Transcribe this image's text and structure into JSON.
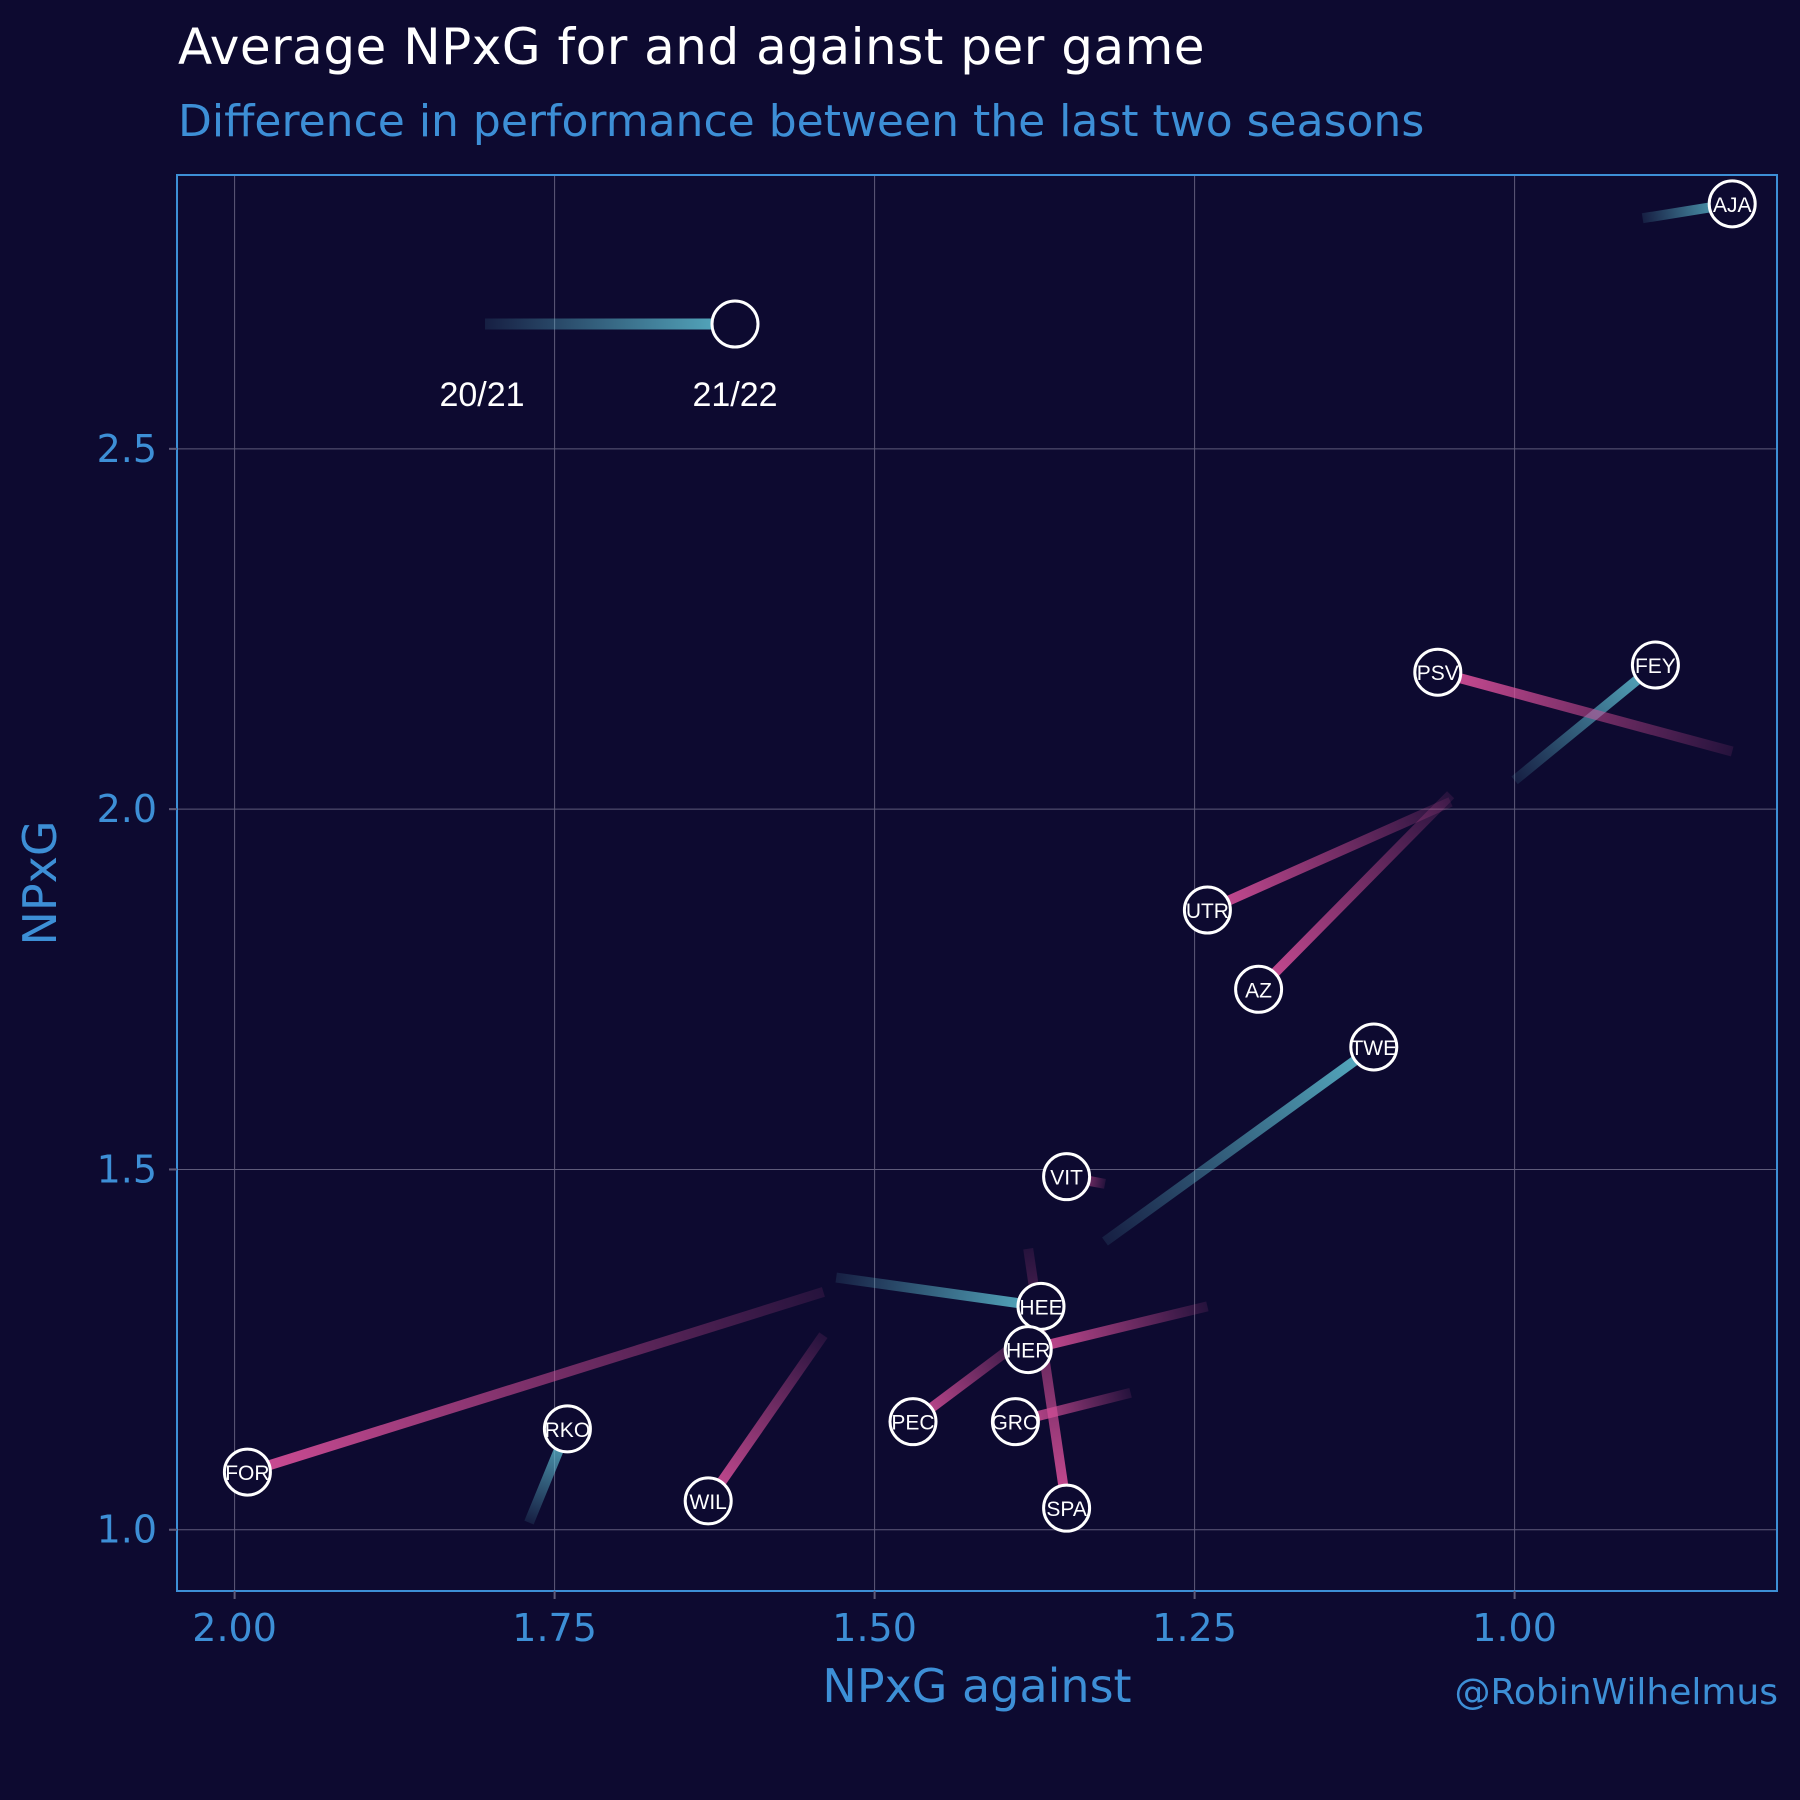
{
  "title": "Average NPxG for and against per game",
  "subtitle": "Difference in performance between the last two seasons",
  "credit": "@RobinWilhelmus",
  "colors": {
    "background": "#0d0a30",
    "accent": "#3d8fd6",
    "improved": "#5bb8cc",
    "declined": "#d9509a",
    "grid": "#5e5b7a"
  },
  "chart_data": {
    "type": "scatter",
    "xlabel": "NPxG against",
    "ylabel": "NPxG",
    "x_reversed": true,
    "xlim": [
      2.045,
      0.795
    ],
    "ylim": [
      0.915,
      2.88
    ],
    "x_ticks": [
      "2.00",
      "1.75",
      "1.50",
      "1.25",
      "1.00"
    ],
    "y_ticks": [
      "1.0",
      "1.5",
      "2.0",
      "2.5"
    ],
    "grid": true,
    "legend": {
      "from_label": "20/21",
      "to_label": "21/22",
      "position": "top-left"
    },
    "teams": [
      {
        "label": "AJA",
        "xga_2021": 0.9,
        "xg_2021": 2.82,
        "xga_2122": 0.83,
        "xg_2122": 2.84
      },
      {
        "label": "FEY",
        "xga_2021": 1.0,
        "xg_2021": 2.04,
        "xga_2122": 0.89,
        "xg_2122": 2.2
      },
      {
        "label": "PSV",
        "xga_2021": 0.83,
        "xg_2021": 2.08,
        "xga_2122": 1.06,
        "xg_2122": 2.19
      },
      {
        "label": "UTR",
        "xga_2021": 1.05,
        "xg_2021": 2.01,
        "xga_2122": 1.24,
        "xg_2122": 1.86
      },
      {
        "label": "AZ",
        "xga_2021": 1.05,
        "xg_2021": 2.02,
        "xga_2122": 1.2,
        "xg_2122": 1.75
      },
      {
        "label": "TWE",
        "xga_2021": 1.32,
        "xg_2021": 1.4,
        "xga_2122": 1.11,
        "xg_2122": 1.67
      },
      {
        "label": "VIT",
        "xga_2021": 1.32,
        "xg_2021": 1.48,
        "xga_2122": 1.35,
        "xg_2122": 1.49
      },
      {
        "label": "HEE",
        "xga_2021": 1.53,
        "xg_2021": 1.35,
        "xga_2122": 1.37,
        "xg_2122": 1.31
      },
      {
        "label": "HER",
        "xga_2021": 1.24,
        "xg_2021": 1.31,
        "xga_2122": 1.38,
        "xg_2122": 1.25
      },
      {
        "label": "GRO",
        "xga_2021": 1.3,
        "xg_2021": 1.19,
        "xga_2122": 1.39,
        "xg_2122": 1.15
      },
      {
        "label": "SPA",
        "xga_2021": 1.38,
        "xg_2021": 1.39,
        "xga_2122": 1.35,
        "xg_2122": 1.03
      },
      {
        "label": "PEC",
        "xga_2021": 1.38,
        "xg_2021": 1.27,
        "xga_2122": 1.47,
        "xg_2122": 1.15
      },
      {
        "label": "WIL",
        "xga_2021": 1.54,
        "xg_2021": 1.27,
        "xga_2122": 1.63,
        "xg_2122": 1.04
      },
      {
        "label": "RKO",
        "xga_2021": 1.77,
        "xg_2021": 1.01,
        "xga_2122": 1.74,
        "xg_2122": 1.14
      },
      {
        "label": "FOR",
        "xga_2021": 1.54,
        "xg_2021": 1.33,
        "xga_2122": 1.99,
        "xg_2122": 1.08
      }
    ]
  }
}
